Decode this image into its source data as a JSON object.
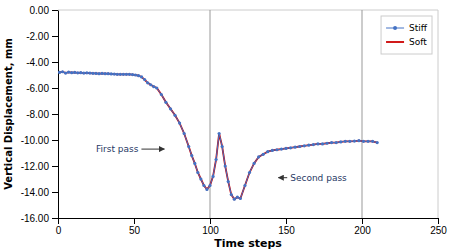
{
  "chart_data": {
    "type": "line",
    "xlabel": "Time steps",
    "ylabel": "Vertical Displacement, mm",
    "x": [
      1,
      3,
      5,
      7,
      9,
      11,
      13,
      15,
      17,
      19,
      21,
      23,
      25,
      27,
      29,
      31,
      33,
      35,
      37,
      39,
      41,
      43,
      45,
      47,
      49,
      51,
      53,
      55,
      57,
      59,
      61,
      63,
      65,
      68,
      71,
      74,
      77,
      80,
      83,
      86,
      88,
      90,
      92,
      94,
      96,
      98,
      100,
      102,
      104,
      106,
      108,
      110,
      112,
      114,
      116,
      118,
      120,
      123,
      126,
      129,
      132,
      135,
      138,
      141,
      144,
      147,
      150,
      153,
      156,
      159,
      162,
      165,
      168,
      171,
      174,
      177,
      180,
      183,
      186,
      189,
      192,
      195,
      198,
      201,
      204,
      207,
      210
    ],
    "series": [
      {
        "name": "Stiff",
        "color": "#4472c4",
        "marker": "circle",
        "values": [
          -4.8,
          -4.75,
          -4.85,
          -4.78,
          -4.82,
          -4.8,
          -4.83,
          -4.82,
          -4.85,
          -4.83,
          -4.85,
          -4.87,
          -4.88,
          -4.9,
          -4.88,
          -4.9,
          -4.9,
          -4.92,
          -4.93,
          -4.95,
          -4.95,
          -4.95,
          -4.95,
          -4.95,
          -4.97,
          -5.0,
          -5.05,
          -5.15,
          -5.35,
          -5.6,
          -5.75,
          -5.9,
          -6.0,
          -6.5,
          -7.1,
          -7.6,
          -8.1,
          -8.7,
          -9.5,
          -10.5,
          -11.2,
          -11.8,
          -12.5,
          -13.0,
          -13.5,
          -13.8,
          -13.5,
          -12.8,
          -11.5,
          -9.5,
          -10.5,
          -12.0,
          -13.2,
          -14.2,
          -14.55,
          -14.4,
          -14.5,
          -13.5,
          -12.5,
          -11.8,
          -11.3,
          -11.1,
          -10.9,
          -10.8,
          -10.75,
          -10.7,
          -10.65,
          -10.6,
          -10.55,
          -10.5,
          -10.45,
          -10.4,
          -10.35,
          -10.3,
          -10.3,
          -10.25,
          -10.2,
          -10.2,
          -10.15,
          -10.1,
          -10.1,
          -10.08,
          -10.05,
          -10.1,
          -10.1,
          -10.1,
          -10.2
        ]
      },
      {
        "name": "Soft",
        "color": "#cc0000",
        "values": [
          -4.8,
          -4.75,
          -4.85,
          -4.78,
          -4.82,
          -4.8,
          -4.83,
          -4.82,
          -4.85,
          -4.83,
          -4.85,
          -4.87,
          -4.88,
          -4.9,
          -4.88,
          -4.9,
          -4.9,
          -4.92,
          -4.93,
          -4.95,
          -4.95,
          -4.95,
          -4.95,
          -4.95,
          -4.97,
          -5.0,
          -5.05,
          -5.15,
          -5.35,
          -5.6,
          -5.75,
          -5.9,
          -6.0,
          -6.5,
          -7.1,
          -7.6,
          -8.1,
          -8.7,
          -9.5,
          -10.5,
          -11.2,
          -11.8,
          -12.5,
          -13.0,
          -13.5,
          -13.8,
          -13.5,
          -12.8,
          -11.5,
          -9.5,
          -10.5,
          -12.0,
          -13.2,
          -14.2,
          -14.55,
          -14.4,
          -14.5,
          -13.5,
          -12.5,
          -11.8,
          -11.3,
          -11.1,
          -10.9,
          -10.8,
          -10.75,
          -10.7,
          -10.65,
          -10.6,
          -10.55,
          -10.5,
          -10.45,
          -10.4,
          -10.35,
          -10.3,
          -10.3,
          -10.25,
          -10.2,
          -10.2,
          -10.15,
          -10.1,
          -10.1,
          -10.08,
          -10.05,
          -10.1,
          -10.1,
          -10.1,
          -10.2
        ]
      }
    ],
    "xlim": [
      0,
      250
    ],
    "ylim": [
      -16.0,
      0.0
    ],
    "xticks": [
      0,
      50,
      100,
      150,
      200,
      250
    ],
    "yticks": [
      {
        "value": 0.0,
        "label": "0.00"
      },
      {
        "value": -2.0,
        "label": "-2.00"
      },
      {
        "value": -4.0,
        "label": "-4.00"
      },
      {
        "value": -6.0,
        "label": "-6.00"
      },
      {
        "value": -8.0,
        "label": "-8.00"
      },
      {
        "value": -10.0,
        "label": "-10.00"
      },
      {
        "value": -12.0,
        "label": "-12.00"
      },
      {
        "value": -14.0,
        "label": "-14.00"
      },
      {
        "value": -16.0,
        "label": "-16.00"
      }
    ],
    "vlines": [
      100,
      200
    ],
    "annotations": [
      {
        "text": "First pass",
        "x": 25,
        "y": -10.7,
        "arrow_x": 70,
        "arrow_y": -10.7
      },
      {
        "text": "Second pass",
        "x": 190,
        "y": -12.9,
        "arrow_x": 145,
        "arrow_y": -12.9
      }
    ],
    "legend": "upper right"
  }
}
